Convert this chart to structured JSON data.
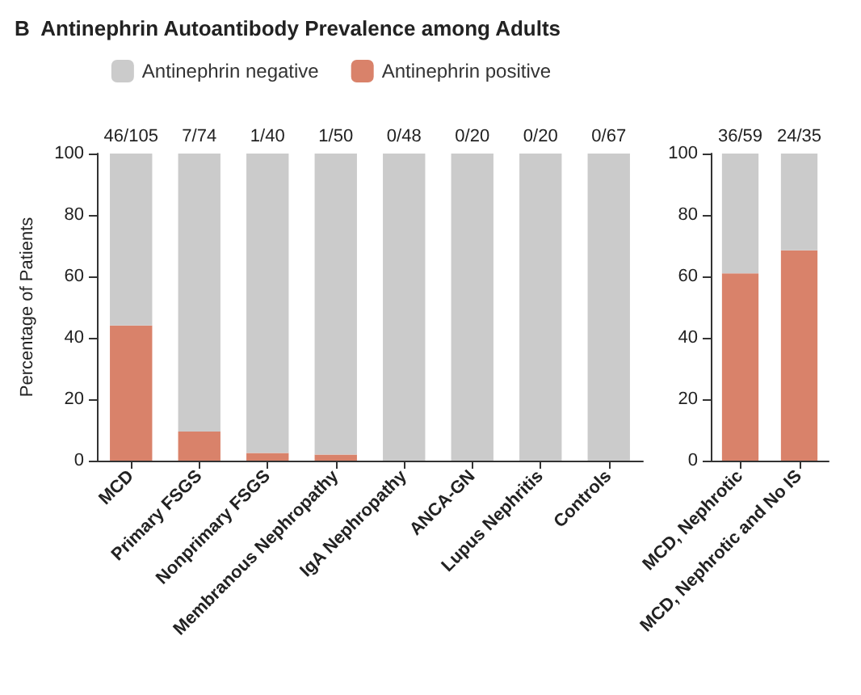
{
  "chart_data": [
    {
      "type": "bar",
      "title": "B  Antinephrin Autoantibody Prevalence among Adults",
      "ylabel": "Percentage of Patients",
      "categories": [
        "MCD",
        "Primary FSGS",
        "Nonprimary FSGS",
        "Membranous Nephropathy",
        "IgA Nephropathy",
        "ANCA-GN",
        "Lupus Nephritis",
        "Controls"
      ],
      "stacked": true,
      "series": [
        {
          "name": "Antinephrin positive",
          "color": "#d9826a",
          "values": [
            44,
            9.5,
            2.5,
            2,
            0,
            0,
            0,
            0
          ]
        },
        {
          "name": "Antinephrin negative",
          "color": "#cbcbcb",
          "values": [
            56,
            90.5,
            97.5,
            98,
            100,
            100,
            100,
            100
          ]
        }
      ],
      "totals": [
        "46/105",
        "7/74",
        "1/40",
        "1/50",
        "0/48",
        "0/20",
        "0/20",
        "0/67"
      ],
      "ylim": [
        0,
        100
      ],
      "yticks": [
        0,
        20,
        40,
        60,
        80,
        100
      ],
      "legend": "top",
      "grid": false
    },
    {
      "type": "bar",
      "categories": [
        "MCD, Nephrotic",
        "MCD, Nephrotic and No IS"
      ],
      "stacked": true,
      "series": [
        {
          "color": "#d9826a",
          "values": [
            61,
            68.5
          ]
        },
        {
          "color": "#cbcbcb",
          "values": [
            39,
            31.5
          ]
        }
      ],
      "totals": [
        "36/59",
        "24/35"
      ],
      "ylim": [
        0,
        100
      ],
      "yticks": [
        0,
        20,
        40,
        60,
        80,
        100
      ],
      "grid": false
    }
  ]
}
